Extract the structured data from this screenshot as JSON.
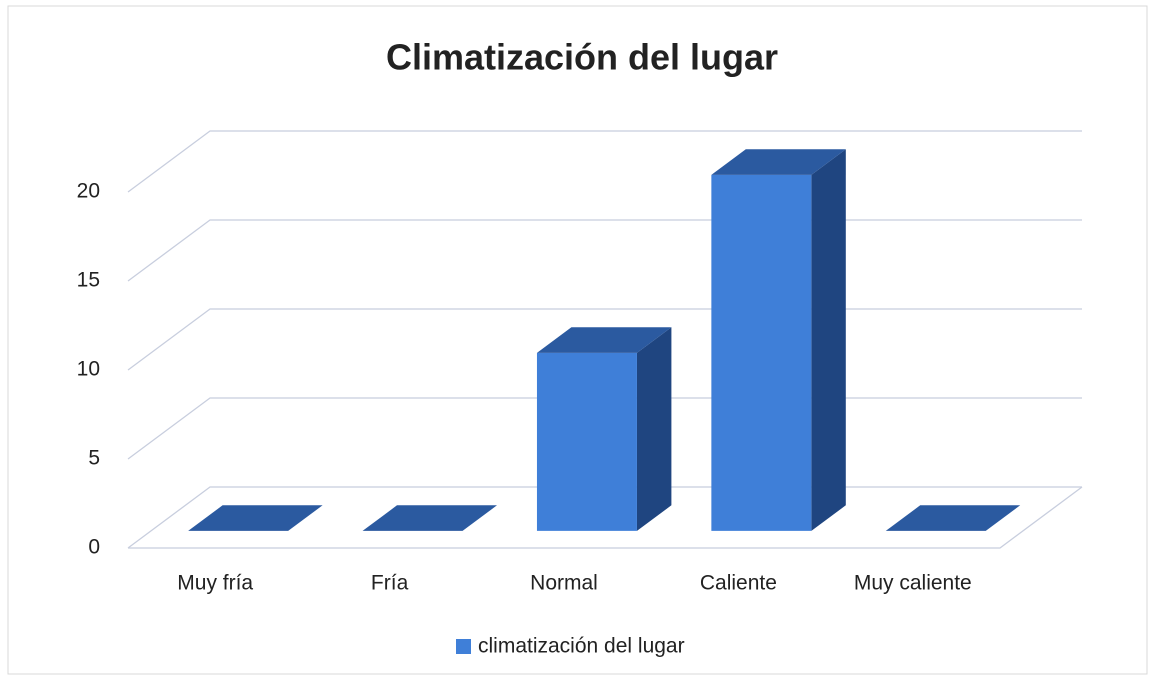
{
  "chart_data": {
    "type": "bar3d",
    "title": "Climatización del lugar",
    "categories": [
      "Muy fría",
      "Fría",
      "Normal",
      "Caliente",
      "Muy caliente"
    ],
    "series": [
      {
        "name": "climatización del lugar",
        "color": "#3f7fd8",
        "values": [
          0,
          0,
          10,
          20,
          0
        ]
      }
    ],
    "ylim": [
      0,
      20
    ],
    "yticks": [
      0,
      5,
      10,
      15,
      20
    ],
    "grid": true,
    "legend": "bottom"
  }
}
